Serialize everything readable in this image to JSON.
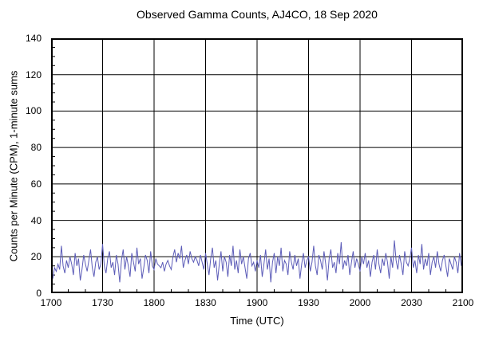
{
  "chart_data": {
    "type": "line",
    "title": "Observed Gamma Counts, AJ4CO, 18 Sep 2020",
    "xlabel": "Time (UTC)",
    "ylabel": "Counts per Minute (CPM), 1-minute sums",
    "x_ticks": [
      "1700",
      "1730",
      "1800",
      "1830",
      "1900",
      "1930",
      "2000",
      "2030",
      "2100"
    ],
    "x_tick_minutes": [
      0,
      30,
      60,
      90,
      120,
      150,
      180,
      210,
      240
    ],
    "y_ticks": [
      0,
      20,
      40,
      60,
      80,
      100,
      120,
      140
    ],
    "ylim": [
      0,
      140
    ],
    "xlim_minutes": [
      0,
      240
    ],
    "minor_x_step_minutes": 10,
    "minor_y_step": 5,
    "grid": true,
    "legend": "none",
    "frame_color": "#000000",
    "grid_color": "#000000",
    "line_color": "#5c5cb8",
    "series": [
      {
        "name": "1-minute gamma count sums",
        "start_time_utc": "1700",
        "step_minutes": 1,
        "values": [
          17,
          8,
          14,
          12,
          16,
          13,
          26,
          15,
          11,
          18,
          14,
          20,
          16,
          10,
          22,
          15,
          19,
          7,
          13,
          21,
          16,
          12,
          18,
          24,
          14,
          9,
          17,
          20,
          13,
          16,
          27,
          15,
          11,
          19,
          23,
          14,
          17,
          10,
          21,
          16,
          6,
          18,
          24,
          13,
          20,
          15,
          9,
          22,
          17,
          12,
          25,
          16,
          19,
          8,
          14,
          21,
          18,
          11,
          23,
          15,
          13,
          19,
          16,
          15,
          14,
          17,
          12,
          16,
          18,
          15,
          13,
          20,
          24,
          17,
          22,
          19,
          26,
          14,
          18,
          21,
          16,
          23,
          19,
          17,
          20,
          18,
          15,
          21,
          17,
          13,
          22,
          16,
          10,
          19,
          25,
          14,
          18,
          7,
          16,
          23,
          12,
          20,
          17,
          9,
          21,
          15,
          26,
          13,
          18,
          11,
          24,
          16,
          20,
          14,
          8,
          19,
          22,
          15,
          17,
          12,
          18,
          14,
          21,
          9,
          16,
          24,
          13,
          19,
          6,
          17,
          22,
          11,
          20,
          15,
          25,
          12,
          18,
          16,
          10,
          23,
          17,
          13,
          21,
          15,
          19,
          8,
          16,
          22,
          14,
          18,
          20,
          12,
          17,
          26,
          15,
          10,
          21,
          18,
          13,
          23,
          16,
          7,
          19,
          24,
          14,
          17,
          11,
          22,
          16,
          28,
          13,
          18,
          15,
          21,
          10,
          17,
          23,
          14,
          19,
          16,
          12,
          20,
          16,
          22,
          14,
          18,
          9,
          17,
          21,
          13,
          24,
          16,
          11,
          19,
          15,
          22,
          17,
          8,
          20,
          14,
          29,
          18,
          13,
          21,
          16,
          10,
          23,
          17,
          15,
          19,
          25,
          14,
          18,
          11,
          21,
          16,
          27,
          13,
          19,
          15,
          22,
          10,
          17,
          20,
          14,
          23,
          16,
          12,
          18,
          21,
          15,
          9,
          19,
          16,
          13,
          20,
          17,
          11,
          22,
          15,
          18
        ]
      }
    ]
  }
}
